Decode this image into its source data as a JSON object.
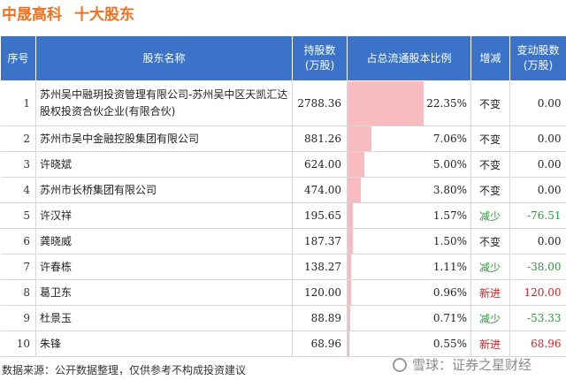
{
  "header": {
    "company": "中晟高科",
    "section": "十大股东"
  },
  "columns": [
    "序号",
    "股东名称",
    "持股数\n(万股)",
    "占总流通股本比例",
    "增减",
    "变动股数\n(万股)"
  ],
  "rows": [
    {
      "idx": "1",
      "name": "苏州吴中融玥投资管理有限公司-苏州吴中区天凯汇达股权投资合伙企业(有限合伙)",
      "shares": "2788.36",
      "pct": "22.35%",
      "pct_value": 22.35,
      "change": "不变",
      "change_type": "same",
      "delta": "0.00"
    },
    {
      "idx": "2",
      "name": "苏州市吴中金融控股集团有限公司",
      "shares": "881.26",
      "pct": "7.06%",
      "pct_value": 7.06,
      "change": "不变",
      "change_type": "same",
      "delta": "0.00"
    },
    {
      "idx": "3",
      "name": "许晓斌",
      "shares": "624.00",
      "pct": "5.00%",
      "pct_value": 5.0,
      "change": "不变",
      "change_type": "same",
      "delta": "0.00"
    },
    {
      "idx": "4",
      "name": "苏州市长桥集团有限公司",
      "shares": "474.00",
      "pct": "3.80%",
      "pct_value": 3.8,
      "change": "不变",
      "change_type": "same",
      "delta": "0.00"
    },
    {
      "idx": "5",
      "name": "许汉祥",
      "shares": "195.65",
      "pct": "1.57%",
      "pct_value": 1.57,
      "change": "减少",
      "change_type": "down",
      "delta": "-76.51"
    },
    {
      "idx": "6",
      "name": "龚晓威",
      "shares": "187.37",
      "pct": "1.50%",
      "pct_value": 1.5,
      "change": "不变",
      "change_type": "same",
      "delta": "0.00"
    },
    {
      "idx": "7",
      "name": "许春栋",
      "shares": "138.27",
      "pct": "1.11%",
      "pct_value": 1.11,
      "change": "减少",
      "change_type": "down",
      "delta": "-38.00"
    },
    {
      "idx": "8",
      "name": "葛卫东",
      "shares": "120.00",
      "pct": "0.96%",
      "pct_value": 0.96,
      "change": "新进",
      "change_type": "new",
      "delta": "120.00"
    },
    {
      "idx": "9",
      "name": "杜景玉",
      "shares": "88.89",
      "pct": "0.71%",
      "pct_value": 0.71,
      "change": "减少",
      "change_type": "down",
      "delta": "-53.33"
    },
    {
      "idx": "10",
      "name": "朱锋",
      "shares": "68.96",
      "pct": "0.55%",
      "pct_value": 0.55,
      "change": "新进",
      "change_type": "new",
      "delta": "68.96"
    }
  ],
  "footer": {
    "source": "数据来源：公开数据整理，仅供参考不构成投资建议"
  },
  "watermark": {
    "text": "雪球：证券之星财经"
  },
  "colors": {
    "title": "#f07020",
    "header_bg": "#3a73c8",
    "bar": "#f8bcc0",
    "increase": "#e0191f",
    "decrease": "#2a9a3a"
  }
}
